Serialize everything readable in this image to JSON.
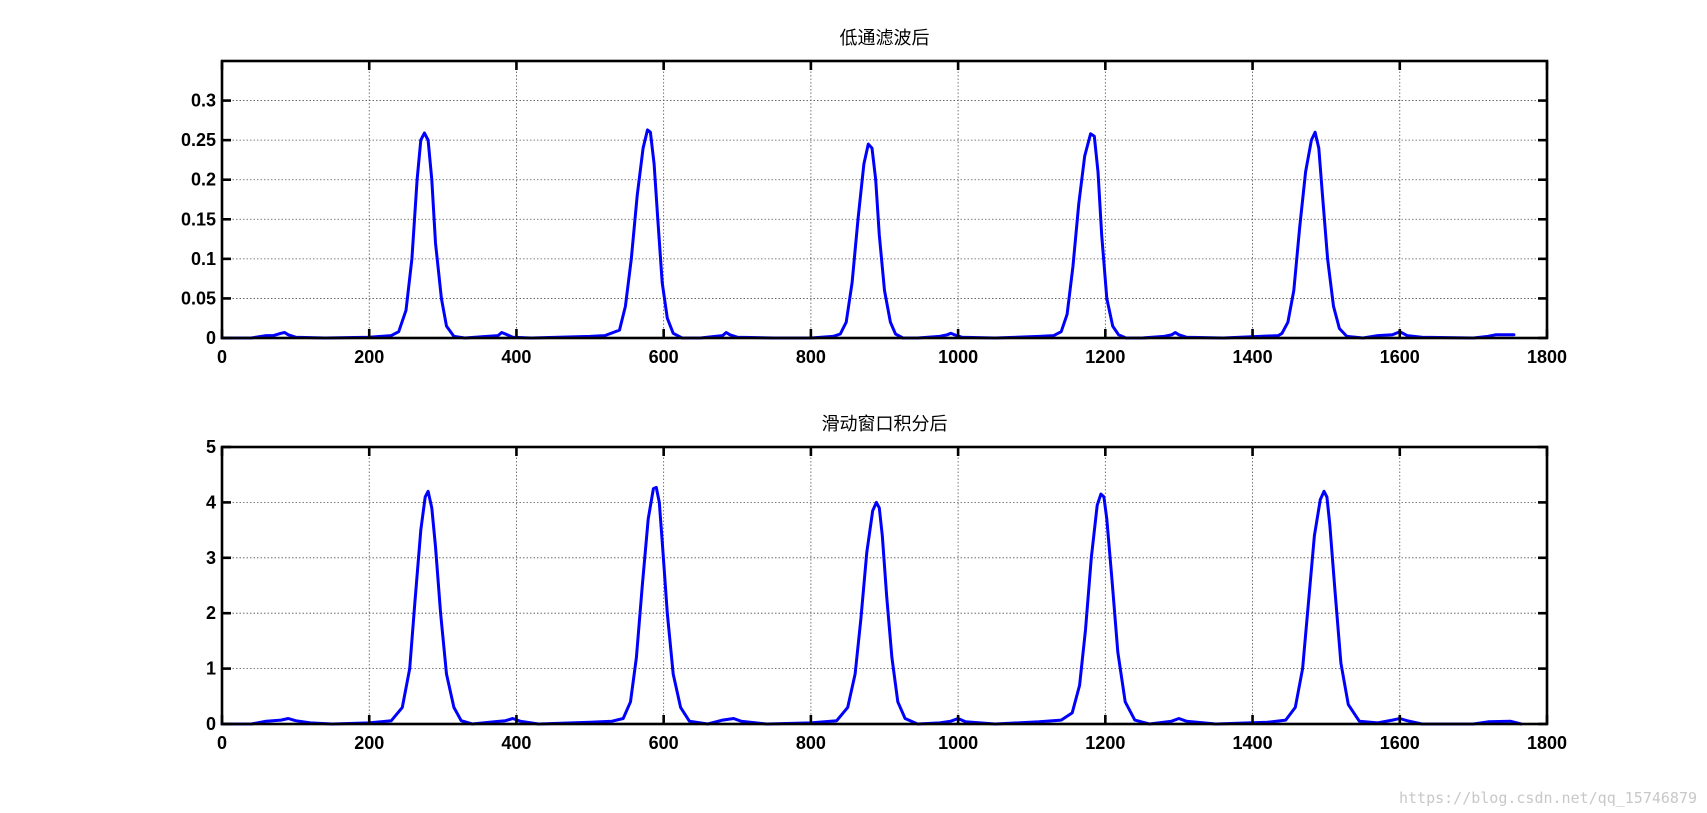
{
  "watermark": "https://blog.csdn.net/qq_15746879",
  "chart_data": [
    {
      "type": "line",
      "title": "低通滤波后",
      "xlim": [
        0,
        1800
      ],
      "ylim": [
        0,
        0.35
      ],
      "xticks": [
        0,
        200,
        400,
        600,
        800,
        1000,
        1200,
        1400,
        1600,
        1800
      ],
      "xtick_labels": [
        "0",
        "200",
        "400",
        "600",
        "800",
        "1000",
        "1200",
        "1400",
        "1600",
        "1800"
      ],
      "yticks": [
        0,
        0.05,
        0.1,
        0.15,
        0.2,
        0.25,
        0.3
      ],
      "ytick_labels": [
        "0",
        "0.05",
        "0.1",
        "0.15",
        "0.2",
        "0.25",
        "0.3"
      ],
      "grid": true,
      "line_color": "#0000ff",
      "series": [
        {
          "x": [
            0,
            40,
            60,
            70,
            80,
            85,
            90,
            100,
            140,
            200,
            230,
            240,
            250,
            258,
            265,
            270,
            275,
            280,
            285,
            290,
            298,
            305,
            315,
            330,
            360,
            375,
            380,
            385,
            395,
            420,
            500,
            520,
            540,
            548,
            556,
            564,
            572,
            578,
            582,
            587,
            592,
            598,
            605,
            613,
            625,
            650,
            670,
            680,
            685,
            690,
            700,
            750,
            800,
            830,
            840,
            848,
            856,
            864,
            872,
            878,
            883,
            888,
            893,
            900,
            908,
            915,
            925,
            945,
            975,
            985,
            990,
            995,
            1005,
            1050,
            1110,
            1130,
            1140,
            1148,
            1156,
            1164,
            1172,
            1180,
            1185,
            1190,
            1195,
            1202,
            1210,
            1218,
            1228,
            1250,
            1280,
            1290,
            1295,
            1300,
            1310,
            1360,
            1410,
            1435,
            1440,
            1448,
            1456,
            1464,
            1472,
            1480,
            1485,
            1490,
            1495,
            1502,
            1510,
            1518,
            1528,
            1550,
            1570,
            1590,
            1600,
            1610,
            1630,
            1700,
            1720,
            1730,
            1755
          ],
          "y": [
            0,
            0,
            0.003,
            0.003,
            0.006,
            0.007,
            0.004,
            0.001,
            0,
            0.001,
            0.003,
            0.008,
            0.035,
            0.1,
            0.2,
            0.25,
            0.259,
            0.25,
            0.2,
            0.12,
            0.05,
            0.015,
            0.002,
            0,
            0.002,
            0.003,
            0.007,
            0.005,
            0.001,
            0,
            0.002,
            0.003,
            0.01,
            0.04,
            0.1,
            0.18,
            0.24,
            0.263,
            0.26,
            0.22,
            0.15,
            0.07,
            0.025,
            0.006,
            0,
            0,
            0.002,
            0.003,
            0.007,
            0.004,
            0.001,
            0,
            0,
            0.002,
            0.005,
            0.02,
            0.07,
            0.15,
            0.22,
            0.245,
            0.24,
            0.2,
            0.13,
            0.06,
            0.02,
            0.005,
            0,
            0,
            0.002,
            0.004,
            0.006,
            0.004,
            0.001,
            0,
            0.002,
            0.003,
            0.008,
            0.03,
            0.09,
            0.17,
            0.23,
            0.258,
            0.255,
            0.21,
            0.13,
            0.05,
            0.015,
            0.004,
            0,
            0,
            0.002,
            0.004,
            0.007,
            0.004,
            0.001,
            0,
            0.002,
            0.003,
            0.006,
            0.02,
            0.06,
            0.14,
            0.21,
            0.25,
            0.26,
            0.24,
            0.18,
            0.1,
            0.04,
            0.012,
            0.002,
            0,
            0.003,
            0.004,
            0.008,
            0.003,
            0.001,
            0,
            0.002,
            0.004,
            0.004
          ]
        }
      ]
    },
    {
      "type": "line",
      "title": "滑动窗口积分后",
      "xlim": [
        0,
        1800
      ],
      "ylim": [
        0,
        5
      ],
      "xticks": [
        0,
        200,
        400,
        600,
        800,
        1000,
        1200,
        1400,
        1600,
        1800
      ],
      "xtick_labels": [
        "0",
        "200",
        "400",
        "600",
        "800",
        "1000",
        "1200",
        "1400",
        "1600",
        "1800"
      ],
      "yticks": [
        0,
        1,
        2,
        3,
        4,
        5
      ],
      "ytick_labels": [
        "0",
        "1",
        "2",
        "3",
        "4",
        "5"
      ],
      "grid": true,
      "line_color": "#0000ff",
      "series": [
        {
          "x": [
            0,
            40,
            60,
            80,
            90,
            100,
            120,
            150,
            200,
            230,
            245,
            255,
            262,
            270,
            276,
            280,
            285,
            290,
            297,
            305,
            315,
            325,
            340,
            370,
            385,
            395,
            405,
            430,
            500,
            530,
            545,
            555,
            563,
            571,
            579,
            586,
            590,
            594,
            598,
            605,
            613,
            623,
            635,
            660,
            680,
            695,
            705,
            740,
            800,
            835,
            850,
            860,
            868,
            876,
            884,
            889,
            893,
            897,
            903,
            910,
            918,
            928,
            945,
            975,
            990,
            1000,
            1010,
            1050,
            1110,
            1140,
            1155,
            1165,
            1173,
            1181,
            1189,
            1194,
            1198,
            1202,
            1209,
            1217,
            1227,
            1240,
            1260,
            1290,
            1300,
            1310,
            1350,
            1420,
            1445,
            1458,
            1468,
            1476,
            1484,
            1492,
            1497,
            1501,
            1505,
            1512,
            1520,
            1530,
            1545,
            1570,
            1590,
            1600,
            1610,
            1630,
            1700,
            1720,
            1750,
            1765
          ],
          "y": [
            0,
            0,
            0.05,
            0.07,
            0.1,
            0.06,
            0.02,
            0,
            0.02,
            0.06,
            0.3,
            1.0,
            2.2,
            3.5,
            4.1,
            4.2,
            3.9,
            3.2,
            2.0,
            0.9,
            0.3,
            0.06,
            0,
            0.04,
            0.06,
            0.1,
            0.05,
            0,
            0.03,
            0.05,
            0.1,
            0.4,
            1.2,
            2.5,
            3.7,
            4.25,
            4.27,
            4.0,
            3.3,
            2.0,
            0.9,
            0.3,
            0.05,
            0,
            0.07,
            0.1,
            0.05,
            0,
            0.02,
            0.06,
            0.3,
            0.9,
            1.9,
            3.1,
            3.85,
            4.0,
            3.9,
            3.4,
            2.3,
            1.2,
            0.4,
            0.1,
            0,
            0.02,
            0.05,
            0.1,
            0.04,
            0,
            0.04,
            0.07,
            0.2,
            0.7,
            1.7,
            3.0,
            3.95,
            4.15,
            4.1,
            3.7,
            2.6,
            1.3,
            0.4,
            0.07,
            0,
            0.05,
            0.1,
            0.05,
            0,
            0.03,
            0.07,
            0.3,
            1.0,
            2.2,
            3.4,
            4.05,
            4.2,
            4.1,
            3.6,
            2.4,
            1.1,
            0.35,
            0.05,
            0.02,
            0.07,
            0.1,
            0.06,
            0,
            0,
            0.04,
            0.05,
            0
          ]
        }
      ]
    }
  ]
}
